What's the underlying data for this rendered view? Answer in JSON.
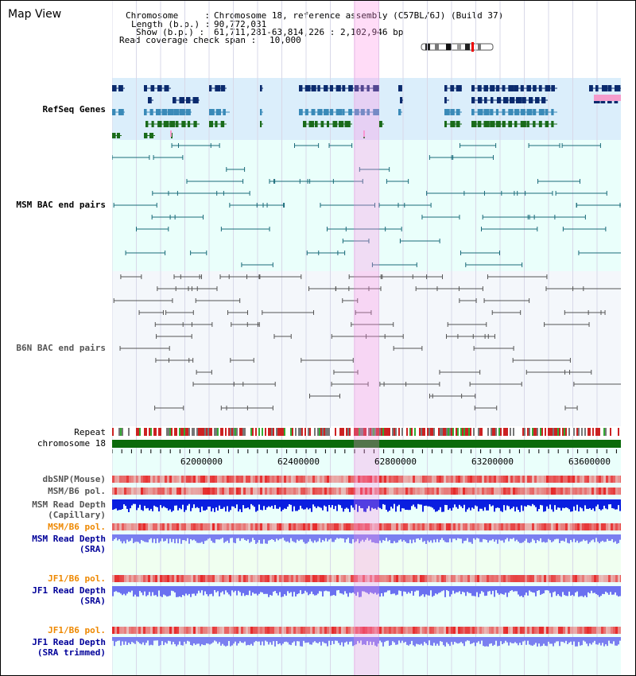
{
  "title": "Map View",
  "header": {
    "chromosome_label": "Chromosome     :",
    "chromosome_value": "Chromosome 18, reference assembly (C57BL/6J) (Build 37)",
    "length_label": "Length (b.p.) :",
    "length_value": "90,772,031",
    "show_label": "Show (b.p.) :",
    "show_value": "61,711,281-63,814,226 : 2,102,946 bp",
    "coverage_label": "Read coverage check span :",
    "coverage_value": "10,000"
  },
  "tracks": {
    "refseq": "RefSeq Genes",
    "msm_bac": "MSM BAC end pairs",
    "b6n_bac": "B6N BAC end pairs",
    "repeat": "Repeat",
    "chromosome": "chromosome 18",
    "dbsnp": "dbSNP(Mouse)",
    "msm_b6_pol_1": "MSM/B6 pol.",
    "msm_read_depth_cap_1": "MSM Read Depth",
    "msm_read_depth_cap_2": "(Capillary)",
    "msm_b6_pol_2": "MSM/B6 pol.",
    "msm_read_depth_sra_1": "MSM Read Depth",
    "msm_read_depth_sra_2": "(SRA)",
    "jf1_b6_pol_1": "JF1/B6 pol.",
    "jf1_read_depth_sra_1": "JF1 Read Depth",
    "jf1_read_depth_sra_2": "(SRA)",
    "jf1_b6_pol_2": "JF1/B6 pol.",
    "jf1_read_depth_trim_1": "JF1 Read Depth",
    "jf1_read_depth_trim_2": "(SRA trimmed)"
  },
  "axis": {
    "ticks": [
      "62000000",
      "62400000",
      "62800000",
      "63200000",
      "63600000"
    ]
  },
  "colors": {
    "refseq_label": "#0000aa",
    "msm_label": "#005a7a",
    "pol_orange": "#ee8800",
    "depth_blue": "#000099",
    "chromosome_green": "#006600",
    "highlight": "#ffb8f0"
  }
}
